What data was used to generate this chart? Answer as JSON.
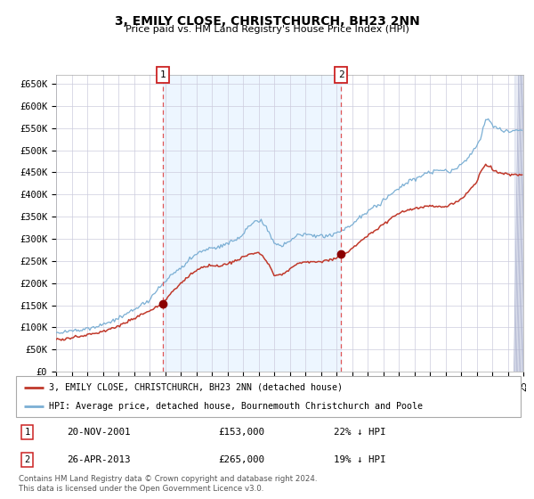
{
  "title": "3, EMILY CLOSE, CHRISTCHURCH, BH23 2NN",
  "subtitle": "Price paid vs. HM Land Registry's House Price Index (HPI)",
  "legend_line1": "3, EMILY CLOSE, CHRISTCHURCH, BH23 2NN (detached house)",
  "legend_line2": "HPI: Average price, detached house, Bournemouth Christchurch and Poole",
  "footnote": "Contains HM Land Registry data © Crown copyright and database right 2024.\nThis data is licensed under the Open Government Licence v3.0.",
  "ann1_date": "20-NOV-2001",
  "ann1_price": "£153,000",
  "ann1_desc": "22% ↓ HPI",
  "ann2_date": "26-APR-2013",
  "ann2_price": "£265,000",
  "ann2_desc": "19% ↓ HPI",
  "hpi_color": "#7bafd4",
  "price_color": "#c0392b",
  "dot_color": "#8b0000",
  "dashed_color": "#e05555",
  "bg_fill_color": "#ddeeff",
  "grid_color": "#ccccdd",
  "ylim": [
    0,
    670000
  ],
  "yticks": [
    0,
    50000,
    100000,
    150000,
    200000,
    250000,
    300000,
    350000,
    400000,
    450000,
    500000,
    550000,
    600000,
    650000
  ],
  "ytick_labels": [
    "£0",
    "£50K",
    "£100K",
    "£150K",
    "£200K",
    "£250K",
    "£300K",
    "£350K",
    "£400K",
    "£450K",
    "£500K",
    "£550K",
    "£600K",
    "£650K"
  ],
  "sale1_year": 2001.875,
  "sale1_val": 153000,
  "sale2_year": 2013.292,
  "sale2_val": 265000,
  "xmin": 1995,
  "xmax": 2025
}
